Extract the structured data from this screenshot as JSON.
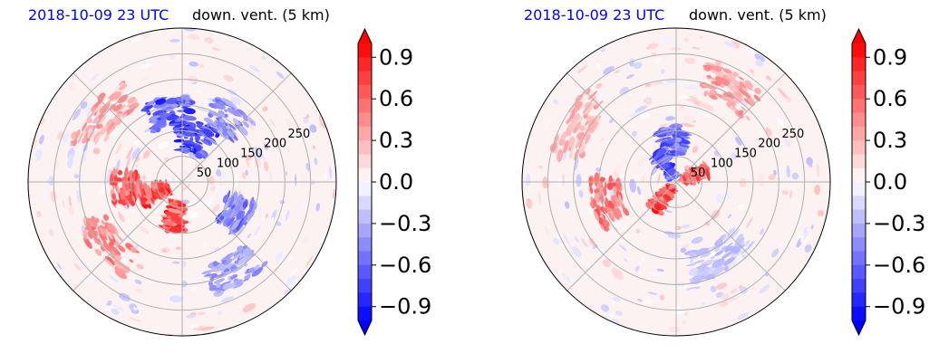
{
  "chart_data": [
    {
      "type": "heatmap",
      "projection": "polar",
      "title_left": "2018-10-09 23 UTC",
      "title_right": "down. vent. (5 km)",
      "radial_ticks": [
        "50",
        "100",
        "150",
        "200",
        "250"
      ],
      "radial_values": [
        50,
        100,
        150,
        200,
        250
      ],
      "grid": true,
      "colorbar": {
        "colormap": "bwr",
        "range": [
          -1.0,
          1.0
        ],
        "levels": 20,
        "extend": "both",
        "tick_values": [
          0.9,
          0.6,
          0.3,
          0.0,
          -0.3,
          -0.6,
          -0.9
        ],
        "tick_labels": [
          "0.9",
          "0.6",
          "0.3",
          "0.0",
          "−0.3",
          "−0.6",
          "−0.9"
        ]
      },
      "features": [
        {
          "theta_deg": 75,
          "r": 90,
          "value": -0.95,
          "spread": 45
        },
        {
          "theta_deg": 100,
          "r": 140,
          "value": -0.9,
          "spread": 35
        },
        {
          "theta_deg": 55,
          "r": 150,
          "value": -0.6,
          "spread": 30
        },
        {
          "theta_deg": 200,
          "r": 60,
          "value": 0.95,
          "spread": 25
        },
        {
          "theta_deg": 185,
          "r": 110,
          "value": 0.85,
          "spread": 30
        },
        {
          "theta_deg": 260,
          "r": 70,
          "value": 0.95,
          "spread": 25
        },
        {
          "theta_deg": 220,
          "r": 190,
          "value": 0.6,
          "spread": 35
        },
        {
          "theta_deg": 330,
          "r": 120,
          "value": -0.7,
          "spread": 30
        },
        {
          "theta_deg": 300,
          "r": 200,
          "value": -0.5,
          "spread": 30
        },
        {
          "theta_deg": 140,
          "r": 200,
          "value": 0.5,
          "spread": 40
        }
      ]
    },
    {
      "type": "heatmap",
      "projection": "polar",
      "title_left": "2018-10-09 23 UTC",
      "title_right": "down. vent. (5 km)",
      "radial_ticks": [
        "50",
        "100",
        "150",
        "200",
        "250"
      ],
      "radial_values": [
        50,
        100,
        150,
        200,
        250
      ],
      "grid": true,
      "colorbar": {
        "colormap": "bwr",
        "range": [
          -1.0,
          1.0
        ],
        "levels": 20,
        "extend": "both",
        "tick_values": [
          0.9,
          0.6,
          0.3,
          0.0,
          -0.3,
          -0.6,
          -0.9
        ],
        "tick_labels": [
          "0.9",
          "0.6",
          "0.3",
          "0.0",
          "−0.3",
          "−0.6",
          "−0.9"
        ]
      },
      "features": [
        {
          "theta_deg": 95,
          "r": 80,
          "value": -0.8,
          "spread": 35
        },
        {
          "theta_deg": 120,
          "r": 40,
          "value": -0.9,
          "spread": 25
        },
        {
          "theta_deg": 230,
          "r": 40,
          "value": 0.95,
          "spread": 20
        },
        {
          "theta_deg": 195,
          "r": 140,
          "value": 0.7,
          "spread": 35
        },
        {
          "theta_deg": 20,
          "r": 40,
          "value": 0.8,
          "spread": 20
        },
        {
          "theta_deg": 60,
          "r": 210,
          "value": 0.5,
          "spread": 30
        },
        {
          "theta_deg": 300,
          "r": 170,
          "value": -0.3,
          "spread": 40
        },
        {
          "theta_deg": 150,
          "r": 220,
          "value": 0.4,
          "spread": 35
        }
      ]
    }
  ]
}
